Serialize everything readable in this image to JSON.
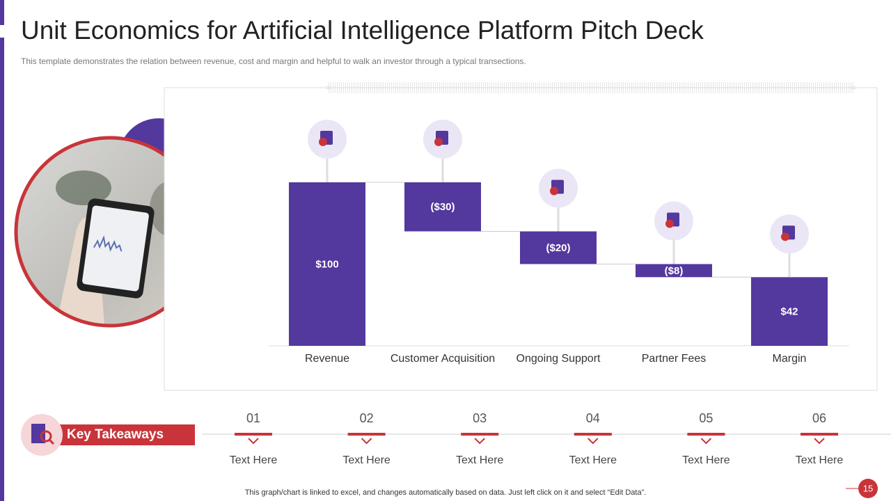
{
  "title": "Unit Economics for Artificial Intelligence Platform Pitch Deck",
  "subtitle": "This template demonstrates the relation between revenue, cost and margin and helpful to walk an investor through a typical transections.",
  "chart_data": {
    "type": "waterfall",
    "categories": [
      "Revenue",
      "Customer Acquisition",
      "Ongoing Support",
      "Partner Fees",
      "Margin"
    ],
    "values": [
      100,
      -30,
      -20,
      -8,
      42
    ],
    "value_labels": [
      "$100",
      "($30)",
      "($20)",
      "($8)",
      "$42"
    ],
    "measure": [
      "absolute",
      "relative",
      "relative",
      "relative",
      "total"
    ],
    "color": "#53389e",
    "ylim": [
      0,
      100
    ]
  },
  "key_takeaways": {
    "label": "Key Takeaways",
    "items": [
      {
        "number": "01",
        "text": "Text Here"
      },
      {
        "number": "02",
        "text": "Text Here"
      },
      {
        "number": "03",
        "text": "Text Here"
      },
      {
        "number": "04",
        "text": "Text Here"
      },
      {
        "number": "05",
        "text": "Text Here"
      },
      {
        "number": "06",
        "text": "Text Here"
      }
    ]
  },
  "footer": "This graph/chart is linked to excel, and changes automatically based on data. Just left click on it and select “Edit Data”.",
  "page_number": "15"
}
